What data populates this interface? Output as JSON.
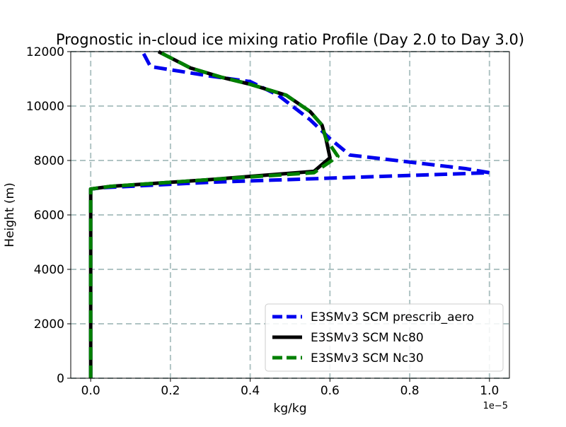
{
  "chart_data": {
    "type": "line",
    "title": "Prognostic in-cloud ice mixing ratio Profile (Day 2.0 to Day 3.0)",
    "xlabel": "kg/kg",
    "ylabel": "Height (m)",
    "x_offset_label": "1e−5",
    "xlim": [
      -0.05,
      1.05
    ],
    "ylim": [
      0,
      12000
    ],
    "x_ticks": [
      0.0,
      0.2,
      0.4,
      0.6,
      0.8,
      1.0
    ],
    "x_tick_labels": [
      "0.0",
      "0.2",
      "0.4",
      "0.6",
      "0.8",
      "1.0"
    ],
    "y_ticks": [
      0,
      2000,
      4000,
      6000,
      8000,
      10000,
      12000
    ],
    "y_tick_labels": [
      "0",
      "2000",
      "4000",
      "6000",
      "8000",
      "10000",
      "12000"
    ],
    "grid": true,
    "legend_position": "lower-right",
    "series": [
      {
        "name": "E3SMv3 SCM prescrib_aero",
        "color": "#0000ee",
        "style": "dashed",
        "x": [
          0,
          0,
          0,
          0.03,
          0.3,
          1.0,
          0.94,
          0.65,
          0.6,
          0.55,
          0.47,
          0.4,
          0.3,
          0.15,
          0.13
        ],
        "y": [
          0,
          2000,
          6950,
          7000,
          7200,
          7550,
          7700,
          8200,
          8800,
          9500,
          10400,
          10900,
          11100,
          11450,
          12000
        ]
      },
      {
        "name": "E3SMv3 SCM Nc80",
        "color": "#000000",
        "style": "solid",
        "x": [
          0,
          0,
          0,
          0.05,
          0.3,
          0.56,
          0.6,
          0.59,
          0.58,
          0.55,
          0.49,
          0.4,
          0.33,
          0.25,
          0.17
        ],
        "y": [
          0,
          2000,
          6950,
          7050,
          7300,
          7600,
          8100,
          8800,
          9300,
          9800,
          10400,
          10800,
          11050,
          11400,
          12000
        ]
      },
      {
        "name": "E3SMv3 SCM Nc30",
        "color": "#008000",
        "style": "dashed",
        "x": [
          0,
          0,
          0,
          0.05,
          0.3,
          0.56,
          0.62,
          0.59,
          0.58,
          0.55,
          0.49,
          0.4,
          0.33,
          0.25,
          0.17
        ],
        "y": [
          0,
          2000,
          6950,
          7050,
          7300,
          7550,
          8150,
          8800,
          9300,
          9800,
          10400,
          10800,
          11050,
          11400,
          12000
        ]
      }
    ]
  }
}
